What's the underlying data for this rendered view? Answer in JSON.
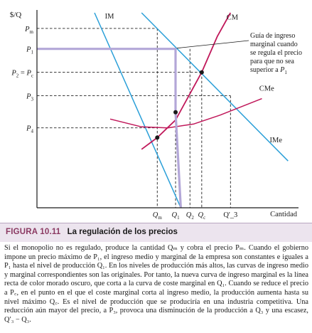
{
  "chart_data": {
    "type": "line",
    "title": "",
    "ylabel": "$/Q",
    "xlabel": "Cantidad",
    "xlim": [
      0,
      10
    ],
    "ylim": [
      0,
      10
    ],
    "x_ticks": [
      {
        "label": "Q_m",
        "value": 4.6
      },
      {
        "label": "Q_1",
        "value": 5.3
      },
      {
        "label": "Q_2",
        "value": 5.85
      },
      {
        "label": "Q_c",
        "value": 6.3
      },
      {
        "label": "Q'_3",
        "value": 7.4
      }
    ],
    "y_ticks": [
      {
        "label": "P_m",
        "value": 9.2
      },
      {
        "label": "P_1",
        "value": 8.15
      },
      {
        "label": "P_2 = P_c",
        "value": 6.95
      },
      {
        "label": "P_3",
        "value": 5.75
      },
      {
        "label": "P_4",
        "value": 4.1
      }
    ],
    "series": [
      {
        "name": "IM",
        "color": "#2a9fd8",
        "points": [
          [
            2.2,
            10
          ],
          [
            5.5,
            0
          ]
        ]
      },
      {
        "name": "IMe",
        "color": "#2a9fd8",
        "points": [
          [
            4.0,
            10
          ],
          [
            9.6,
            2.4
          ]
        ]
      },
      {
        "name": "CM",
        "color": "#c0185a",
        "points": [
          [
            4.0,
            3.0
          ],
          [
            4.6,
            3.6
          ],
          [
            5.3,
            4.5
          ],
          [
            6.3,
            6.95
          ],
          [
            6.9,
            8.8
          ],
          [
            7.4,
            10
          ]
        ]
      },
      {
        "name": "CMe",
        "color": "#c0185a",
        "points": [
          [
            2.8,
            4.55
          ],
          [
            4.0,
            4.15
          ],
          [
            5.0,
            4.1
          ],
          [
            6.0,
            4.3
          ],
          [
            7.0,
            4.75
          ],
          [
            8.6,
            5.6
          ]
        ]
      },
      {
        "name": "",
        "color": "#b3a7d8",
        "points": [
          [
            0,
            8.15
          ],
          [
            5.3,
            8.15
          ],
          [
            5.3,
            4.9
          ],
          [
            5.5,
            0
          ]
        ]
      }
    ],
    "annotations": [
      {
        "text_lines": [
          "Guía de ingreso",
          "marginal cuando",
          "se regula el precio",
          "para que no sea",
          "superior a P_1"
        ]
      }
    ],
    "curve_labels": [
      "IM",
      "CM",
      "CMe",
      "IMe"
    ]
  },
  "caption": {
    "figure_number": "FIGURA 10.11",
    "title": "La regulación de los precios",
    "body": "Si el monopolio no es regulado, produce la cantidad Qₘ y cobra el precio Pₘ. Cuando el gobierno impone un precio máximo de P₁, el ingreso medio y marginal de la empresa son constantes e iguales a P₁ hasta el nivel de producción Q₁. En los niveles de producción más altos, las curvas de ingreso medio y marginal correspondientes son las originales. Por tanto, la nueva curva de ingreso marginal es la línea recta de color morado oscuro, que corta a la curva de coste marginal en Q₁. Cuando se reduce el precio a P꜀, en el punto en el que el coste marginal corta al ingreso medio, la producción aumenta hasta su nivel máximo Q꜀. Es el nivel de producción que se produciría en una industria competitiva. Una reducción aún mayor del precio, a P₃, provoca una disminución de la producción a Q₃ y una escasez, Q′₃ − Q₃."
  }
}
